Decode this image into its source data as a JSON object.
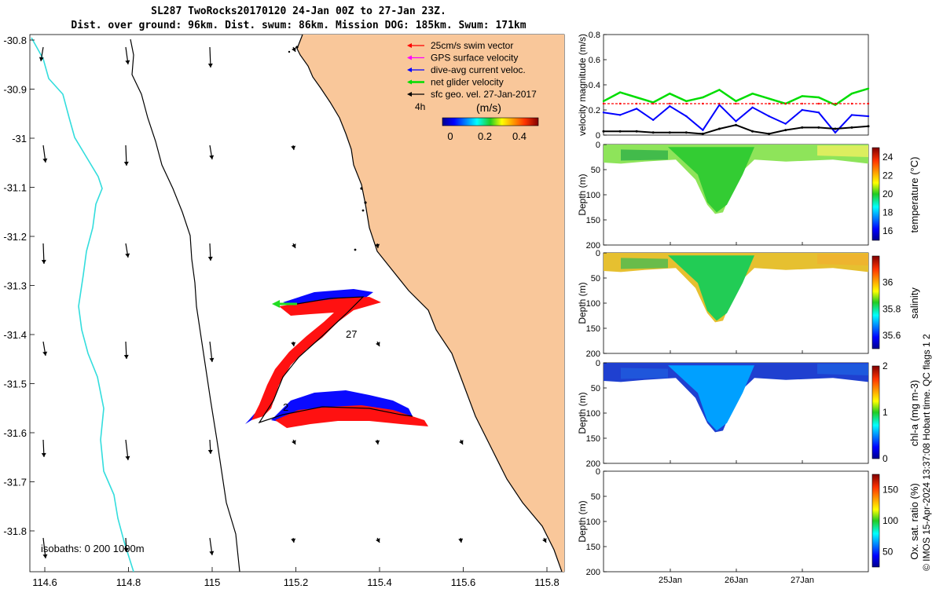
{
  "title": {
    "line1": "SL287 TwoRocks20170120 24-Jan 00Z to 27-Jan 23Z.",
    "line2": "Dist. over ground: 96km. Dist. swum: 86km. Mission DOG: 185km. Swum: 171km"
  },
  "map": {
    "xticks": [
      "114.6",
      "114.8",
      "115",
      "115.2",
      "115.4",
      "115.6",
      "115.8"
    ],
    "yticks": [
      "-30.8",
      "-30.9",
      "-31",
      "-31.1",
      "-31.2",
      "-31.3",
      "-31.4",
      "-31.5",
      "-31.6",
      "-31.7",
      "-31.8"
    ],
    "legend": [
      {
        "label": "25cm/s swim vector",
        "color": "#ff0000"
      },
      {
        "label": "GPS surface velocity",
        "color": "#ff00ff"
      },
      {
        "label": "dive-avg current veloc.",
        "color": "#0000ff"
      },
      {
        "label": "net glider velocity",
        "color": "#00dd00"
      },
      {
        "label": "sfc geo. vel. 27-Jan-2017",
        "color": "#000000"
      }
    ],
    "interval_label": "4h",
    "colorbar_label": "(m/s)",
    "colorbar_ticks": [
      "0",
      "0.2",
      "0.4"
    ],
    "isobaths_label": "isobaths: 0   200 1000m",
    "track_labels": [
      "27",
      "2"
    ],
    "land_color": "#f9c79a",
    "bathy_color": "#33dddd"
  },
  "chart_data": [
    {
      "type": "line",
      "title": "velocity magnitude",
      "ylabel": "velocity magnitude (m/s)",
      "ylim": [
        0,
        0.8
      ],
      "yticks": [
        "0",
        "0.2",
        "0.4",
        "0.6",
        "0.8"
      ],
      "x_days": [
        24.0,
        24.25,
        24.5,
        24.75,
        25.0,
        25.25,
        25.5,
        25.75,
        26.0,
        26.25,
        26.5,
        26.75,
        27.0,
        27.25,
        27.5,
        27.75,
        28.0
      ],
      "series": [
        {
          "name": "net glider velocity",
          "color": "#00dd00",
          "values": [
            0.27,
            0.34,
            0.3,
            0.26,
            0.33,
            0.27,
            0.3,
            0.36,
            0.27,
            0.33,
            0.29,
            0.25,
            0.31,
            0.3,
            0.24,
            0.33,
            0.37
          ]
        },
        {
          "name": "dive-avg current veloc.",
          "color": "#0000ff",
          "values": [
            0.18,
            0.16,
            0.21,
            0.12,
            0.23,
            0.15,
            0.04,
            0.24,
            0.11,
            0.22,
            0.15,
            0.09,
            0.2,
            0.18,
            0.02,
            0.16,
            0.15
          ]
        },
        {
          "name": "swim speed",
          "color": "#ff0000",
          "values": [
            0.25,
            0.25,
            0.25,
            0.25,
            0.25,
            0.25,
            0.25,
            0.25,
            0.25,
            0.25,
            0.25,
            0.25,
            0.25,
            0.25,
            0.25,
            0.25,
            0.25
          ]
        },
        {
          "name": "sfc geo. vel.",
          "color": "#000000",
          "values": [
            0.03,
            0.03,
            0.03,
            0.02,
            0.02,
            0.02,
            0.01,
            0.05,
            0.08,
            0.03,
            0.01,
            0.04,
            0.06,
            0.06,
            0.05,
            0.06,
            0.07
          ]
        }
      ]
    },
    {
      "type": "heatmap",
      "variable": "temperature",
      "ylabel": "Depth (m)",
      "ylim": [
        0,
        200
      ],
      "yticks": [
        "0",
        "50",
        "100",
        "150",
        "200"
      ],
      "colorbar_label": "temperature (°C)",
      "clim": [
        15,
        25
      ],
      "colorbar_ticks": [
        "16",
        "18",
        "20",
        "22",
        "24"
      ]
    },
    {
      "type": "heatmap",
      "variable": "salinity",
      "ylabel": "Depth (m)",
      "ylim": [
        0,
        200
      ],
      "yticks": [
        "0",
        "50",
        "100",
        "150",
        "200"
      ],
      "colorbar_label": "salinity",
      "clim": [
        35.5,
        36.2
      ],
      "colorbar_ticks": [
        "35.6",
        "35.8",
        "36"
      ]
    },
    {
      "type": "heatmap",
      "variable": "chl-a",
      "ylabel": "Depth (m)",
      "ylim": [
        0,
        200
      ],
      "yticks": [
        "0",
        "50",
        "100",
        "150",
        "200"
      ],
      "colorbar_label": "chl-a (mg m-3)",
      "clim": [
        0,
        2
      ],
      "colorbar_ticks": [
        "0",
        "1",
        "2"
      ]
    },
    {
      "type": "heatmap",
      "variable": "oxygen saturation",
      "ylabel": "Depth (m)",
      "ylim": [
        0,
        200
      ],
      "yticks": [
        "0",
        "50",
        "100",
        "150",
        "200"
      ],
      "colorbar_label": "Ox. sat. ratio (%)",
      "clim": [
        25,
        175
      ],
      "colorbar_ticks": [
        "50",
        "100",
        "150"
      ],
      "xticks": [
        "25Jan",
        "26Jan",
        "27Jan"
      ]
    }
  ],
  "credit": "© IMOS 15-Apr-2024 13:37:08 Hobart time. QC flags 1  2"
}
